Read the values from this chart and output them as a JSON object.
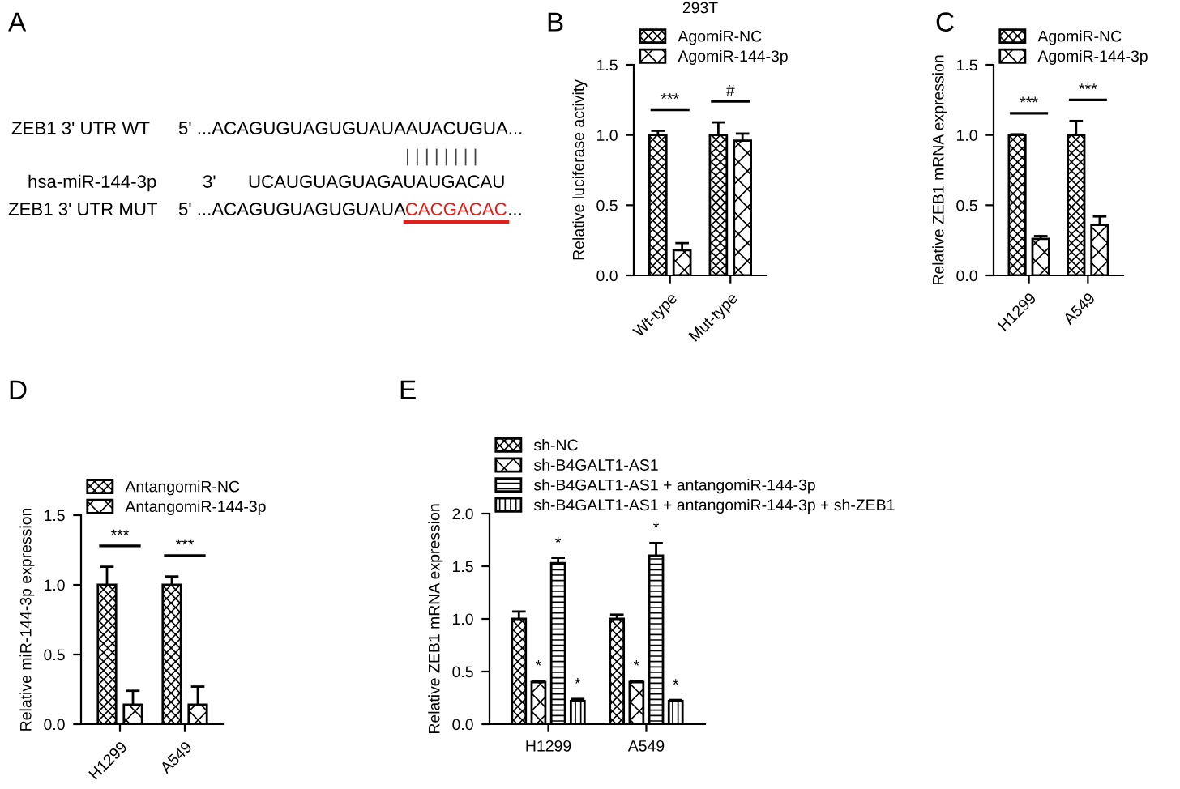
{
  "chart_data": [
    {
      "type": "other",
      "annotations": [
        "A",
        "ZEB1 3' UTR WT",
        "5' ...ACAGUGUAGUGUAUAAUACUGUA...",
        "| | | | | | | |",
        "hsa-miR-144-3p",
        "3'",
        "UCAUGUAGUAGAUAUGACAU",
        "ZEB1 3' UTR MUT",
        "5' ...ACAGUGUAGUGUAUA",
        "CACGACAC",
        "..."
      ]
    },
    {
      "type": "bar",
      "title": "293T",
      "ylabel": "Relative luciferase activity",
      "categories": [
        "Wt-type",
        "Mut-type"
      ],
      "ylim": [
        0,
        1.5
      ],
      "yticks": [
        {
          "value": 0,
          "label": "0.0"
        },
        {
          "value": 0.5,
          "label": "0.5"
        },
        {
          "value": 1,
          "label": "1.0"
        },
        {
          "value": 1.5,
          "label": "1.5"
        }
      ],
      "legend": "top right",
      "grid": false,
      "series": [
        {
          "name": "AgomiR-NC",
          "color": "#000000",
          "values": [
            1.0,
            1.0
          ],
          "errors": [
            0.03,
            0.09
          ]
        },
        {
          "name": "AgomiR-144-3p",
          "color": "#000000",
          "values": [
            0.18,
            0.96
          ],
          "errors": [
            0.05,
            0.05
          ]
        }
      ],
      "annotations": [
        "B",
        "***",
        "#"
      ]
    },
    {
      "type": "bar",
      "ylabel": "Relative ZEB1 mRNA expression",
      "categories": [
        "H1299",
        "A549"
      ],
      "ylim": [
        0,
        1.5
      ],
      "yticks": [
        {
          "value": 0,
          "label": "0.0"
        },
        {
          "value": 0.5,
          "label": "0.5"
        },
        {
          "value": 1,
          "label": "1.0"
        },
        {
          "value": 1.5,
          "label": "1.5"
        }
      ],
      "legend": "top right",
      "grid": false,
      "series": [
        {
          "name": "AgomiR-NC",
          "color": "#000000",
          "values": [
            1.0,
            1.0
          ],
          "errors": [
            0.005,
            0.1
          ]
        },
        {
          "name": "AgomiR-144-3p",
          "color": "#000000",
          "values": [
            0.26,
            0.36
          ],
          "errors": [
            0.02,
            0.06
          ]
        }
      ],
      "annotations": [
        "C",
        "***",
        "***"
      ]
    },
    {
      "type": "bar",
      "ylabel": "Relative miR-144-3p expression",
      "categories": [
        "H1299",
        "A549"
      ],
      "ylim": [
        0,
        1.5
      ],
      "yticks": [
        {
          "value": 0,
          "label": "0.0"
        },
        {
          "value": 0.5,
          "label": "0.5"
        },
        {
          "value": 1,
          "label": "1.0"
        },
        {
          "value": 1.5,
          "label": "1.5"
        }
      ],
      "legend": "top right",
      "grid": false,
      "series": [
        {
          "name": "AntangomiR-NC",
          "color": "#000000",
          "values": [
            1.0,
            1.0
          ],
          "errors": [
            0.13,
            0.06
          ]
        },
        {
          "name": "AntangomiR-144-3p",
          "color": "#000000",
          "values": [
            0.14,
            0.14
          ],
          "errors": [
            0.1,
            0.13
          ]
        }
      ],
      "annotations": [
        "D",
        "***",
        "***"
      ]
    },
    {
      "type": "bar",
      "ylabel": "Relative ZEB1 mRNA expression",
      "categories": [
        "H1299",
        "A549"
      ],
      "ylim": [
        0,
        2.0
      ],
      "yticks": [
        {
          "value": 0,
          "label": "0.0"
        },
        {
          "value": 0.5,
          "label": "0.5"
        },
        {
          "value": 1,
          "label": "1.0"
        },
        {
          "value": 1.5,
          "label": "1.5"
        },
        {
          "value": 2,
          "label": "2.0"
        }
      ],
      "legend": "top right",
      "grid": false,
      "series": [
        {
          "name": "sh-NC",
          "color": "#000000",
          "values": [
            1.0,
            1.0
          ],
          "errors": [
            0.07,
            0.04
          ]
        },
        {
          "name": "sh-B4GALT1-AS1",
          "color": "#000000",
          "values": [
            0.4,
            0.4
          ],
          "errors": [
            0.01,
            0.01
          ],
          "value_labels": [
            "*",
            "*"
          ]
        },
        {
          "name": "sh-B4GALT1-AS1 + antangomiR-144-3p",
          "color": "#000000",
          "values": [
            1.53,
            1.6
          ],
          "errors": [
            0.05,
            0.12
          ],
          "value_labels": [
            "*",
            "*"
          ]
        },
        {
          "name": "sh-B4GALT1-AS1 + antangomiR-144-3p + sh-ZEB1",
          "color": "#000000",
          "values": [
            0.22,
            0.22
          ],
          "errors": [
            0.02,
            0.01
          ],
          "value_labels": [
            "*",
            "*"
          ]
        }
      ],
      "annotations": [
        "E"
      ]
    }
  ]
}
